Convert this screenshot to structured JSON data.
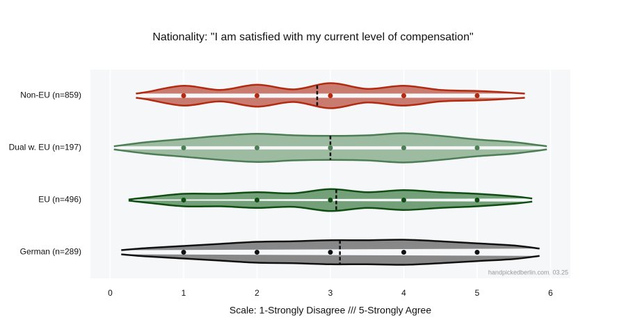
{
  "chart_data": {
    "type": "violin",
    "title": "Nationality: \"I am satisfied with my current level of compensation\"",
    "x_label": "Scale: 1-Strongly Disagree /// 5-Strongly Agree",
    "note": "handpickedberlin.com, 03.25",
    "categories": [
      "Non-EU (n=859)",
      "Dual w. EU (n=197)",
      "EU (n=496)",
      "German (n=289)"
    ],
    "xlim": [
      -0.27,
      6.27
    ],
    "xticks": [
      0,
      1,
      2,
      3,
      4,
      5,
      6
    ],
    "grid": true,
    "points_x": [
      1,
      2,
      3,
      4,
      5
    ],
    "series": [
      {
        "name": "Non-EU (n=859)",
        "color": "#c97b70",
        "line_color": "#b22a10",
        "mean": 2.82,
        "density_x": [
          0.35,
          0.5,
          1,
          1.5,
          2,
          2.5,
          3,
          3.5,
          4,
          4.5,
          5,
          5.3,
          5.65
        ],
        "density": [
          0.04,
          0.07,
          0.19,
          0.11,
          0.21,
          0.12,
          0.24,
          0.13,
          0.19,
          0.11,
          0.09,
          0.07,
          0.04
        ]
      },
      {
        "name": "Dual w. EU (n=197)",
        "color": "#9dbba0",
        "line_color": "#4d7d55",
        "mean": 3.0,
        "density_x": [
          0.05,
          0.5,
          1,
          1.5,
          2,
          2.5,
          3,
          3.5,
          4,
          4.5,
          5,
          5.5,
          5.95
        ],
        "density": [
          0.03,
          0.11,
          0.17,
          0.23,
          0.27,
          0.24,
          0.23,
          0.24,
          0.28,
          0.23,
          0.16,
          0.11,
          0.03
        ]
      },
      {
        "name": "EU (n=496)",
        "color": "#74a079",
        "line_color": "#0f4d12",
        "mean": 3.08,
        "density_x": [
          0.25,
          0.5,
          1,
          1.5,
          2,
          2.5,
          3,
          3.5,
          4,
          4.5,
          5,
          5.5,
          5.75
        ],
        "density": [
          0.01,
          0.05,
          0.12,
          0.12,
          0.15,
          0.13,
          0.21,
          0.15,
          0.19,
          0.15,
          0.12,
          0.07,
          0.03
        ]
      },
      {
        "name": "German (n=289)",
        "color": "#888888",
        "line_color": "#111111",
        "mean": 3.13,
        "density_x": [
          0.15,
          0.5,
          1,
          1.5,
          2,
          2.5,
          3,
          3.5,
          4,
          4.5,
          5,
          5.5,
          5.85
        ],
        "density": [
          0.04,
          0.08,
          0.12,
          0.16,
          0.2,
          0.21,
          0.23,
          0.23,
          0.24,
          0.21,
          0.17,
          0.13,
          0.07
        ]
      }
    ]
  }
}
